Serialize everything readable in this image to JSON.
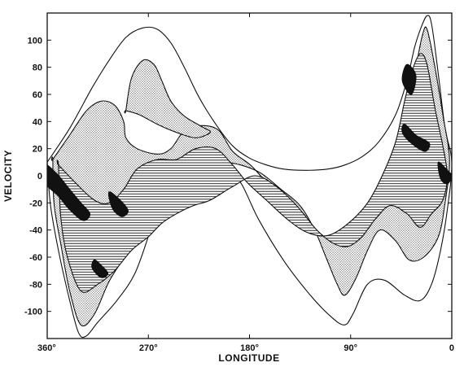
{
  "chart_data": {
    "type": "contour",
    "xlabel": "LONGITUDE",
    "ylabel": "VELOCITY",
    "xlim": [
      360,
      0
    ],
    "ylim": [
      -120,
      120
    ],
    "x_ticks": [
      {
        "value": 360,
        "label": "360°"
      },
      {
        "value": 270,
        "label": "270°"
      },
      {
        "value": 180,
        "label": "180°"
      },
      {
        "value": 90,
        "label": "90°"
      },
      {
        "value": 0,
        "label": "0"
      }
    ],
    "y_ticks": [
      {
        "value": 100,
        "label": "100"
      },
      {
        "value": 80,
        "label": "80"
      },
      {
        "value": 60,
        "label": "60"
      },
      {
        "value": 40,
        "label": "40"
      },
      {
        "value": 20,
        "label": "20"
      },
      {
        "value": 0,
        "label": "0"
      },
      {
        "value": -20,
        "label": "-20"
      },
      {
        "value": -40,
        "label": "-40"
      },
      {
        "value": -60,
        "label": "-60"
      },
      {
        "value": -80,
        "label": "-80"
      },
      {
        "value": -100,
        "label": "-100"
      }
    ],
    "levels": [
      {
        "fill": "none",
        "contours": [
          [
            [
              360,
              10
            ],
            [
              340,
              35
            ],
            [
              320,
              65
            ],
            [
              305,
              85
            ],
            [
              290,
              102
            ],
            [
              275,
              109
            ],
            [
              262,
              108
            ],
            [
              250,
              98
            ],
            [
              238,
              80
            ],
            [
              225,
              58
            ],
            [
              210,
              38
            ],
            [
              195,
              22
            ],
            [
              180,
              13
            ],
            [
              165,
              8
            ],
            [
              150,
              5
            ],
            [
              130,
              4
            ],
            [
              110,
              5
            ],
            [
              95,
              8
            ],
            [
              80,
              14
            ],
            [
              65,
              25
            ],
            [
              50,
              45
            ],
            [
              40,
              70
            ],
            [
              33,
              95
            ],
            [
              27,
              110
            ],
            [
              22,
              118
            ],
            [
              18,
              112
            ],
            [
              12,
              75
            ],
            [
              6,
              35
            ],
            [
              0,
              10
            ],
            [
              4,
              -25
            ],
            [
              10,
              -55
            ],
            [
              18,
              -80
            ],
            [
              28,
              -92
            ],
            [
              42,
              -88
            ],
            [
              60,
              -77
            ],
            [
              75,
              -80
            ],
            [
              88,
              -102
            ],
            [
              96,
              -110
            ],
            [
              110,
              -102
            ],
            [
              128,
              -86
            ],
            [
              150,
              -62
            ],
            [
              172,
              -32
            ],
            [
              188,
              -5
            ],
            [
              200,
              0
            ],
            [
              218,
              2
            ],
            [
              238,
              4
            ],
            [
              255,
              -10
            ],
            [
              268,
              -40
            ],
            [
              282,
              -72
            ],
            [
              298,
              -92
            ],
            [
              315,
              -108
            ],
            [
              325,
              -118
            ],
            [
              332,
              -116
            ],
            [
              340,
              -92
            ],
            [
              350,
              -55
            ],
            [
              357,
              -22
            ],
            [
              360,
              10
            ]
          ]
        ]
      },
      {
        "fill": "dots",
        "contours": [
          [
            [
              355,
              12
            ],
            [
              340,
              30
            ],
            [
              325,
              48
            ],
            [
              312,
              55
            ],
            [
              300,
              52
            ],
            [
              292,
              40
            ],
            [
              290,
              28
            ],
            [
              280,
              20
            ],
            [
              262,
              16
            ],
            [
              250,
              20
            ],
            [
              235,
              35
            ],
            [
              210,
              35
            ],
            [
              195,
              18
            ],
            [
              178,
              7
            ],
            [
              160,
              -10
            ],
            [
              140,
              -28
            ],
            [
              118,
              -42
            ],
            [
              102,
              -50
            ],
            [
              85,
              -40
            ],
            [
              70,
              -18
            ],
            [
              55,
              5
            ],
            [
              42,
              40
            ],
            [
              32,
              80
            ],
            [
              26,
              104
            ],
            [
              22,
              108
            ],
            [
              15,
              80
            ],
            [
              8,
              45
            ],
            [
              2,
              12
            ],
            [
              6,
              -20
            ],
            [
              12,
              -45
            ],
            [
              25,
              -60
            ],
            [
              38,
              -62
            ],
            [
              50,
              -48
            ],
            [
              64,
              -40
            ],
            [
              75,
              -55
            ],
            [
              85,
              -75
            ],
            [
              95,
              -88
            ],
            [
              102,
              -80
            ],
            [
              112,
              -60
            ],
            [
              122,
              -40
            ],
            [
              135,
              -22
            ],
            [
              152,
              -10
            ],
            [
              170,
              2
            ],
            [
              188,
              8
            ],
            [
              205,
              10
            ],
            [
              225,
              8
            ],
            [
              245,
              3
            ],
            [
              262,
              -10
            ],
            [
              275,
              -35
            ],
            [
              290,
              -58
            ],
            [
              305,
              -78
            ],
            [
              318,
              -102
            ],
            [
              330,
              -110
            ],
            [
              340,
              -85
            ],
            [
              348,
              -50
            ],
            [
              354,
              -20
            ],
            [
              355,
              12
            ]
          ],
          [
            [
              290,
              48
            ],
            [
              285,
              72
            ],
            [
              275,
              85
            ],
            [
              265,
              82
            ],
            [
              258,
              70
            ],
            [
              250,
              55
            ],
            [
              238,
              44
            ],
            [
              222,
              36
            ],
            [
              215,
              32
            ],
            [
              228,
              28
            ],
            [
              245,
              32
            ],
            [
              262,
              38
            ],
            [
              278,
              45
            ],
            [
              290,
              48
            ]
          ]
        ]
      },
      {
        "fill": "hatch",
        "contours": [
          [
            [
              350,
              8
            ],
            [
              335,
              -5
            ],
            [
              318,
              -18
            ],
            [
              305,
              -20
            ],
            [
              292,
              -10
            ],
            [
              280,
              5
            ],
            [
              262,
              12
            ],
            [
              245,
              12
            ],
            [
              228,
              20
            ],
            [
              210,
              20
            ],
            [
              195,
              8
            ],
            [
              182,
              -5
            ],
            [
              165,
              -18
            ],
            [
              145,
              -33
            ],
            [
              128,
              -42
            ],
            [
              110,
              -44
            ],
            [
              92,
              -35
            ],
            [
              75,
              -20
            ],
            [
              62,
              0
            ],
            [
              50,
              25
            ],
            [
              42,
              55
            ],
            [
              35,
              78
            ],
            [
              28,
              90
            ],
            [
              22,
              82
            ],
            [
              15,
              50
            ],
            [
              8,
              22
            ],
            [
              4,
              0
            ],
            [
              8,
              -18
            ],
            [
              18,
              -28
            ],
            [
              28,
              -38
            ],
            [
              40,
              -28
            ],
            [
              55,
              -22
            ],
            [
              68,
              -32
            ],
            [
              80,
              -45
            ],
            [
              92,
              -52
            ],
            [
              105,
              -50
            ],
            [
              120,
              -40
            ],
            [
              138,
              -22
            ],
            [
              156,
              -8
            ],
            [
              175,
              0
            ],
            [
              195,
              -8
            ],
            [
              215,
              -18
            ],
            [
              230,
              -22
            ],
            [
              245,
              -28
            ],
            [
              258,
              -35
            ],
            [
              270,
              -45
            ],
            [
              285,
              -55
            ],
            [
              300,
              -70
            ],
            [
              315,
              -80
            ],
            [
              330,
              -85
            ],
            [
              342,
              -60
            ],
            [
              348,
              -30
            ],
            [
              350,
              8
            ]
          ]
        ]
      },
      {
        "fill": "solid",
        "contours": [
          [
            [
              362,
              8
            ],
            [
              352,
              2
            ],
            [
              340,
              -10
            ],
            [
              330,
              -20
            ],
            [
              322,
              -28
            ],
            [
              328,
              -33
            ],
            [
              340,
              -25
            ],
            [
              350,
              -15
            ],
            [
              362,
              -5
            ]
          ],
          [
            [
              305,
              -12
            ],
            [
              295,
              -18
            ],
            [
              288,
              -26
            ],
            [
              294,
              -30
            ],
            [
              302,
              -24
            ]
          ],
          [
            [
              318,
              -62
            ],
            [
              312,
              -66
            ],
            [
              306,
              -72
            ],
            [
              312,
              -75
            ],
            [
              320,
              -68
            ]
          ],
          [
            [
              40,
              82
            ],
            [
              32,
              74
            ],
            [
              36,
              60
            ],
            [
              44,
              70
            ]
          ],
          [
            [
              42,
              38
            ],
            [
              32,
              30
            ],
            [
              20,
              24
            ],
            [
              24,
              18
            ],
            [
              36,
              24
            ],
            [
              44,
              32
            ]
          ],
          [
            [
              12,
              10
            ],
            [
              4,
              4
            ],
            [
              0,
              0
            ],
            [
              4,
              -6
            ],
            [
              10,
              -2
            ]
          ]
        ]
      }
    ]
  }
}
